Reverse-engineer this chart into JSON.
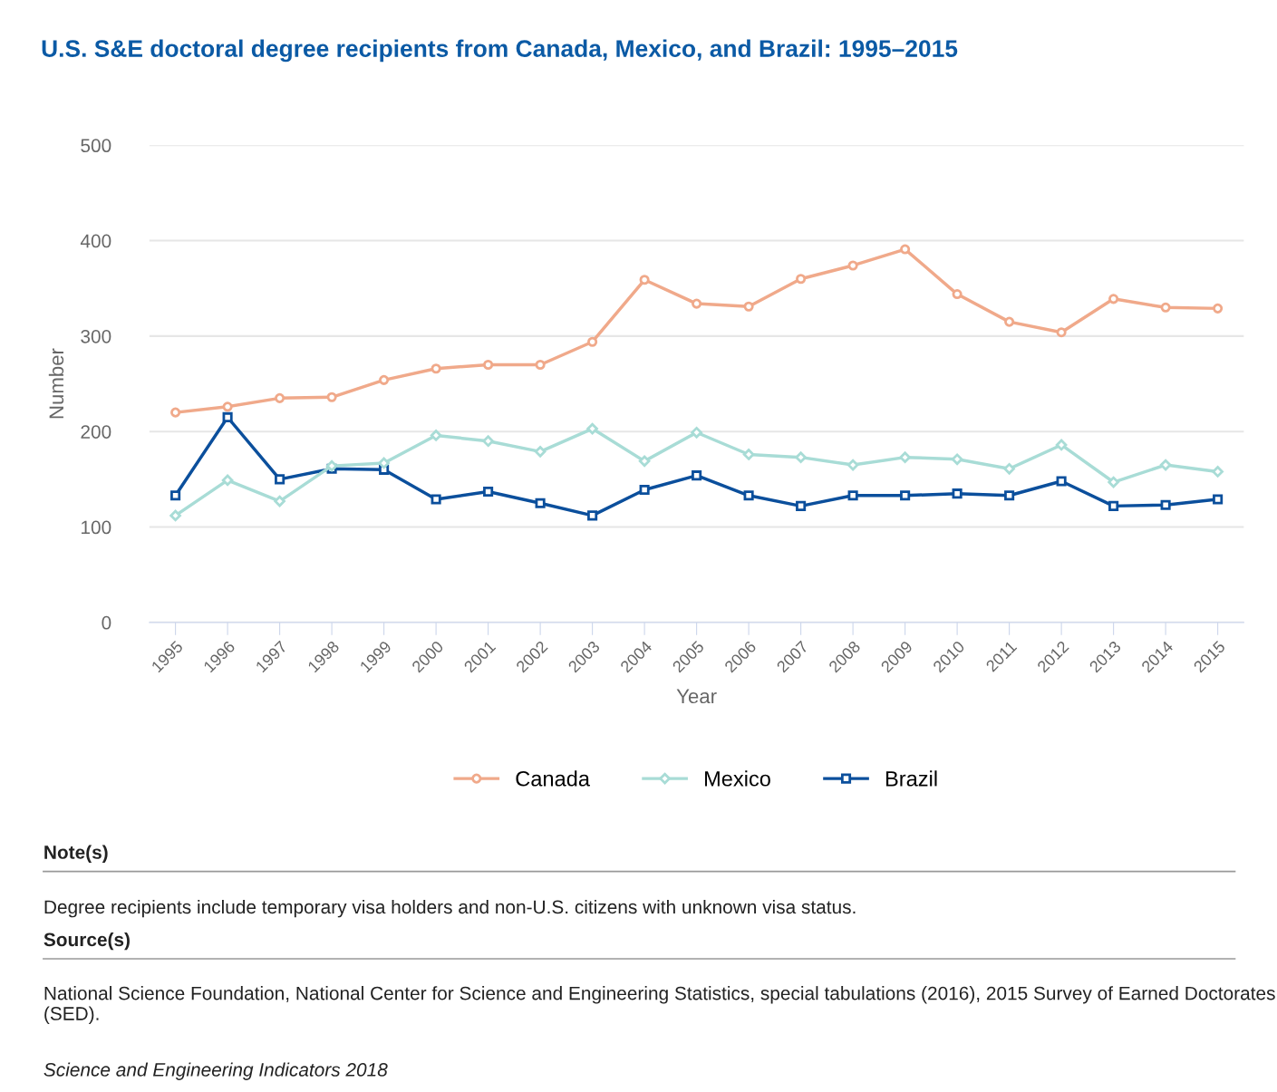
{
  "chart_data": {
    "type": "line",
    "title": "U.S. S&E doctoral degree recipients from Canada, Mexico, and Brazil: 1995–2015",
    "xlabel": "Year",
    "ylabel": "Number",
    "categories": [
      "1995",
      "1996",
      "1997",
      "1998",
      "1999",
      "2000",
      "2001",
      "2002",
      "2003",
      "2004",
      "2005",
      "2006",
      "2007",
      "2008",
      "2009",
      "2010",
      "2011",
      "2012",
      "2013",
      "2014",
      "2015"
    ],
    "series": [
      {
        "name": "Canada",
        "color": "#f0a98a",
        "marker": "circle",
        "values": [
          220,
          226,
          235,
          236,
          254,
          266,
          270,
          270,
          294,
          359,
          334,
          331,
          360,
          374,
          391,
          344,
          315,
          304,
          339,
          330,
          329
        ]
      },
      {
        "name": "Mexico",
        "color": "#a8dcd6",
        "marker": "diamond",
        "values": [
          112,
          149,
          127,
          164,
          167,
          196,
          190,
          179,
          203,
          169,
          199,
          176,
          173,
          165,
          173,
          171,
          161,
          186,
          147,
          165,
          158
        ]
      },
      {
        "name": "Brazil",
        "color": "#0b4f9c",
        "marker": "square",
        "values": [
          133,
          215,
          150,
          161,
          160,
          129,
          137,
          125,
          112,
          139,
          154,
          133,
          122,
          133,
          133,
          135,
          133,
          148,
          122,
          123,
          129
        ]
      }
    ],
    "ylim": [
      0,
      500
    ],
    "yticks": [
      0,
      100,
      200,
      300,
      400,
      500
    ],
    "grid": "y",
    "legend": "bottom",
    "line_style": "solid",
    "annotations": [
      "Note(s)",
      "Degree recipients include temporary visa holders and non-U.S. citizens with unknown visa status.",
      "Source(s)",
      "National Science Foundation, National Center for Science and Engineering Statistics, special tabulations (2016), 2015 Survey of Earned Doctorates (SED).",
      "Science and Engineering Indicators 2018"
    ]
  }
}
